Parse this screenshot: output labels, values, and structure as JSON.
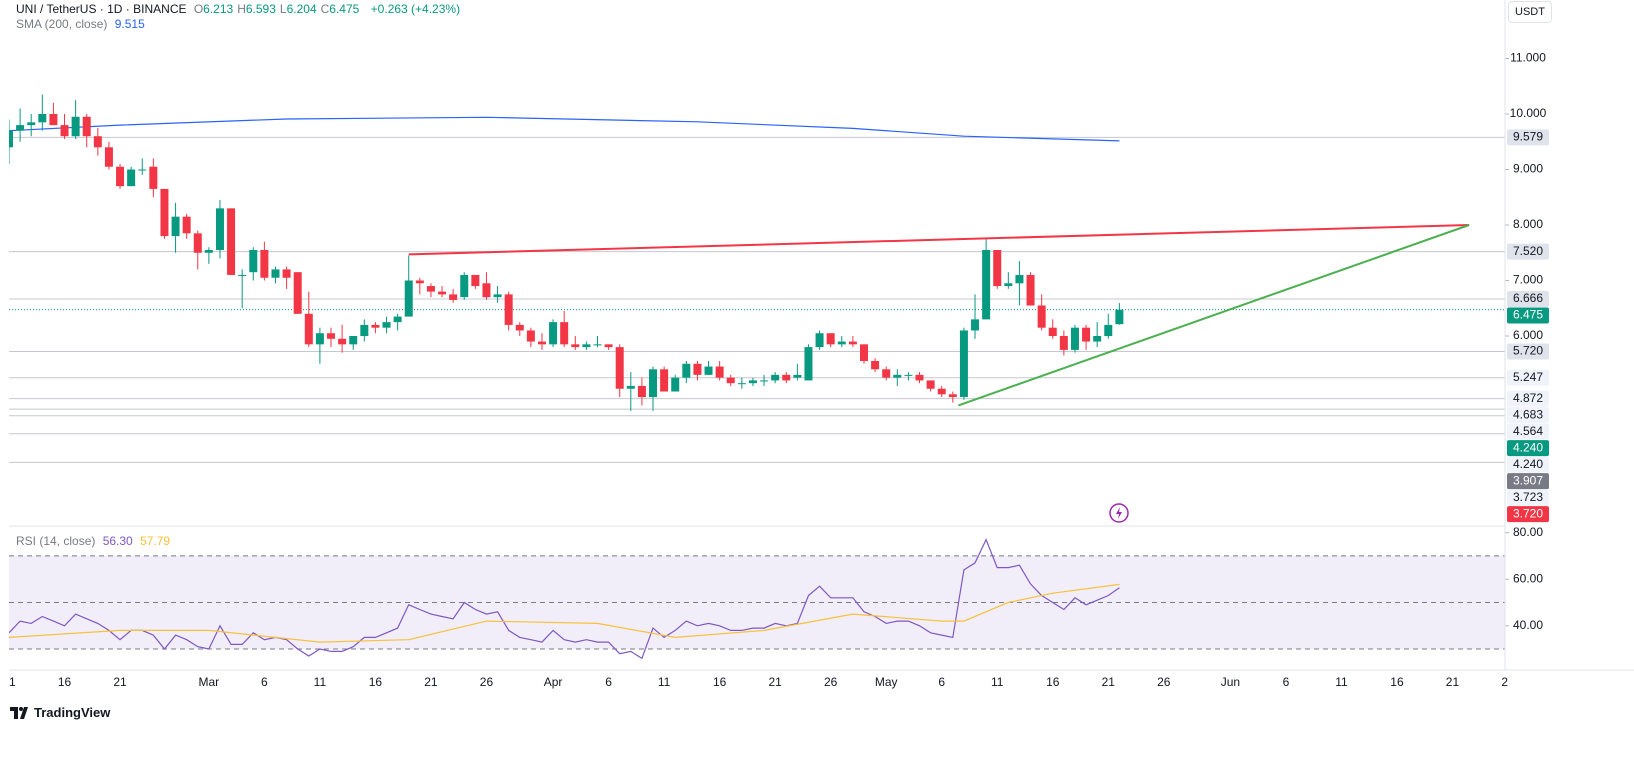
{
  "chart_data": [
    {
      "type": "candlestick",
      "legend": {
        "symbol": "UNI / TetherUS · 1D · BINANCE",
        "ohlc": [
          {
            "key": "O",
            "value": "6.213"
          },
          {
            "key": "H",
            "value": "6.593"
          },
          {
            "key": "L",
            "value": "6.204"
          },
          {
            "key": "C",
            "value": "6.475"
          }
        ],
        "change": "+0.263 (+4.23%)",
        "sma_label": "SMA (200, close)",
        "sma_value": "9.515"
      },
      "currency": "USDT",
      "up_color": "#089981",
      "down_color": "#f23645",
      "x": [
        -18,
        -17,
        -16,
        -15,
        -14,
        -13,
        -12,
        -11,
        -10,
        -9,
        -8,
        -7,
        -6,
        -5,
        -4,
        -3,
        -2,
        -1,
        0,
        1,
        2,
        3,
        4,
        5,
        6,
        7,
        8,
        9,
        10,
        11,
        12,
        13,
        14,
        15,
        16,
        17,
        18,
        19,
        20,
        21,
        22,
        23,
        24,
        25,
        26,
        27,
        28,
        29,
        30,
        31,
        32,
        33,
        34,
        35,
        36,
        37,
        38,
        39,
        40,
        41,
        42,
        43,
        44,
        45,
        46,
        47,
        48,
        49,
        50,
        51,
        52,
        53,
        54,
        55,
        56,
        57,
        58,
        59,
        60,
        61,
        62,
        63,
        64,
        65,
        66,
        67,
        68,
        69,
        70,
        71,
        72,
        73,
        74,
        75,
        76,
        77,
        78,
        79,
        80,
        81,
        82
      ],
      "open": [
        9.4,
        9.7,
        9.8,
        9.85,
        10.0,
        9.8,
        9.6,
        9.95,
        9.6,
        9.4,
        9.05,
        8.7,
        9.0,
        9.05,
        8.65,
        7.8,
        8.15,
        7.85,
        7.5,
        7.55,
        8.3,
        7.1,
        7.15,
        7.55,
        7.05,
        7.2,
        7.15,
        6.4,
        5.85,
        6.05,
        5.95,
        5.85,
        6.0,
        6.2,
        6.15,
        6.25,
        6.35,
        7.0,
        6.9,
        6.8,
        6.75,
        6.7,
        7.1,
        6.95,
        6.7,
        6.75,
        6.2,
        6.1,
        5.9,
        5.85,
        6.25,
        5.85,
        5.8,
        5.85,
        5.85,
        5.8,
        5.05,
        5.1,
        4.9,
        5.4,
        5.0,
        5.25,
        5.5,
        5.3,
        5.45,
        5.25,
        5.15,
        5.15,
        5.2,
        5.2,
        5.3,
        5.25,
        5.2,
        5.8,
        6.05,
        5.85,
        5.9,
        5.85,
        5.55,
        5.4,
        5.25,
        5.3,
        5.3,
        5.2,
        5.05,
        4.95,
        4.9,
        6.1,
        6.3,
        7.55,
        6.9,
        6.95,
        7.1,
        6.55,
        6.15,
        6.0,
        5.75,
        6.15,
        5.9,
        6.0,
        6.213
      ],
      "high": [
        9.9,
        10.1,
        10.0,
        10.35,
        10.2,
        10.0,
        10.25,
        10.0,
        9.75,
        9.5,
        9.1,
        9.05,
        9.2,
        9.2,
        8.65,
        8.4,
        8.2,
        7.9,
        7.6,
        8.45,
        8.3,
        7.2,
        7.6,
        7.7,
        7.25,
        7.25,
        7.15,
        6.8,
        6.15,
        6.15,
        6.2,
        6.0,
        6.3,
        6.25,
        6.35,
        6.4,
        7.45,
        7.05,
        6.95,
        6.9,
        6.85,
        7.15,
        7.1,
        7.15,
        6.9,
        6.8,
        6.25,
        6.15,
        6.05,
        6.3,
        6.45,
        6.0,
        5.9,
        6.0,
        5.85,
        5.85,
        5.35,
        5.25,
        5.45,
        5.45,
        5.3,
        5.55,
        5.55,
        5.55,
        5.55,
        5.3,
        5.25,
        5.25,
        5.3,
        5.35,
        5.35,
        5.5,
        5.85,
        6.1,
        6.05,
        6.0,
        6.0,
        5.85,
        5.6,
        5.45,
        5.4,
        5.35,
        5.35,
        5.2,
        5.1,
        5.0,
        6.15,
        6.75,
        7.75,
        7.55,
        7.15,
        7.35,
        7.15,
        6.75,
        6.3,
        6.1,
        6.2,
        6.2,
        6.25,
        6.4,
        6.593
      ],
      "low": [
        9.1,
        9.5,
        9.6,
        9.7,
        9.8,
        9.55,
        9.55,
        9.4,
        9.25,
        9.0,
        8.65,
        8.7,
        8.9,
        8.5,
        7.75,
        7.5,
        7.75,
        7.2,
        7.3,
        7.4,
        7.1,
        6.5,
        7.0,
        7.0,
        6.95,
        6.85,
        6.4,
        5.8,
        5.5,
        5.8,
        5.7,
        5.75,
        5.9,
        6.05,
        6.05,
        6.1,
        6.35,
        6.75,
        6.7,
        6.7,
        6.6,
        6.65,
        6.85,
        6.65,
        6.6,
        6.1,
        6.0,
        5.8,
        5.75,
        5.8,
        5.8,
        5.75,
        5.75,
        5.8,
        5.75,
        4.9,
        4.65,
        4.75,
        4.65,
        5.0,
        5.0,
        5.15,
        5.2,
        5.3,
        5.2,
        5.1,
        5.05,
        5.1,
        5.1,
        5.15,
        5.15,
        5.2,
        5.2,
        5.75,
        5.8,
        5.8,
        5.8,
        5.5,
        5.35,
        5.2,
        5.1,
        5.2,
        5.15,
        5.0,
        4.9,
        4.8,
        4.85,
        5.95,
        6.3,
        6.85,
        6.85,
        6.55,
        6.55,
        6.1,
        5.95,
        5.65,
        5.7,
        5.75,
        5.8,
        5.95,
        6.204
      ],
      "close": [
        9.7,
        9.8,
        9.85,
        10.0,
        9.8,
        9.6,
        9.95,
        9.6,
        9.4,
        9.05,
        8.7,
        9.0,
        9.0,
        8.65,
        7.8,
        8.15,
        7.85,
        7.5,
        7.55,
        8.3,
        7.1,
        7.1,
        7.55,
        7.05,
        7.2,
        7.05,
        6.4,
        5.85,
        6.05,
        5.95,
        5.85,
        6.0,
        6.2,
        6.15,
        6.25,
        6.35,
        7.0,
        6.95,
        6.8,
        6.75,
        6.65,
        7.1,
        6.9,
        6.7,
        6.75,
        6.2,
        6.1,
        5.9,
        5.85,
        6.25,
        5.85,
        5.8,
        5.85,
        5.85,
        5.8,
        5.05,
        5.1,
        4.9,
        5.4,
        5.0,
        5.25,
        5.5,
        5.3,
        5.45,
        5.25,
        5.15,
        5.15,
        5.2,
        5.2,
        5.3,
        5.2,
        5.3,
        5.8,
        6.05,
        5.85,
        5.9,
        5.85,
        5.55,
        5.4,
        5.25,
        5.3,
        5.3,
        5.2,
        5.05,
        4.95,
        4.9,
        6.1,
        6.3,
        7.55,
        6.9,
        6.95,
        7.1,
        6.55,
        6.15,
        6.0,
        5.75,
        6.15,
        5.9,
        6.0,
        6.2,
        6.475
      ],
      "xlim": [
        -18,
        117
      ],
      "xticks": [
        {
          "value": -17.7,
          "label": "1"
        },
        {
          "value": -13,
          "label": "16"
        },
        {
          "value": -8,
          "label": "21"
        },
        {
          "value": 0,
          "label": "Mar"
        },
        {
          "value": 5,
          "label": "6"
        },
        {
          "value": 10,
          "label": "11"
        },
        {
          "value": 15,
          "label": "16"
        },
        {
          "value": 20,
          "label": "21"
        },
        {
          "value": 25,
          "label": "26"
        },
        {
          "value": 31,
          "label": "Apr"
        },
        {
          "value": 36,
          "label": "6"
        },
        {
          "value": 41,
          "label": "11"
        },
        {
          "value": 46,
          "label": "16"
        },
        {
          "value": 51,
          "label": "21"
        },
        {
          "value": 56,
          "label": "26"
        },
        {
          "value": 61,
          "label": "May"
        },
        {
          "value": 66,
          "label": "6"
        },
        {
          "value": 71,
          "label": "11"
        },
        {
          "value": 76,
          "label": "16"
        },
        {
          "value": 81,
          "label": "21"
        },
        {
          "value": 86,
          "label": "26"
        },
        {
          "value": 92,
          "label": "Jun"
        },
        {
          "value": 97,
          "label": "6"
        },
        {
          "value": 102,
          "label": "11"
        },
        {
          "value": 107,
          "label": "16"
        },
        {
          "value": 112,
          "label": "21"
        },
        {
          "value": 116.7,
          "label": "2"
        }
      ],
      "ylim": [
        2.595,
        12.054
      ],
      "yticks": [
        {
          "value": 11,
          "label": "11.000"
        },
        {
          "value": 10,
          "label": "10.000"
        },
        {
          "value": 9,
          "label": "9.000"
        },
        {
          "value": 8,
          "label": "8.000"
        },
        {
          "value": 7,
          "label": "7.000"
        },
        {
          "value": 6,
          "label": "6.000"
        }
      ],
      "sma": {
        "color": "#2962ff",
        "x": [
          -18,
          -8,
          7,
          25,
          44,
          58,
          68,
          82
        ],
        "values": [
          9.7,
          9.8,
          9.91,
          9.94,
          9.86,
          9.74,
          9.6,
          9.515
        ]
      },
      "trendlines": [
        {
          "color": "#f23645",
          "x": [
            18,
            113.5
          ],
          "values": [
            7.47,
            8.0
          ]
        },
        {
          "color": "#4caf50",
          "x": [
            67.5,
            113.5
          ],
          "values": [
            4.75,
            8.0
          ]
        }
      ],
      "levels": [
        {
          "value": 9.579,
          "label": "9.579",
          "bg": "#e0e3eb",
          "fg": "#131722",
          "line": "solid"
        },
        {
          "value": 7.52,
          "label": "7.520",
          "bg": "#e0e3eb",
          "fg": "#131722",
          "line": "solid"
        },
        {
          "value": 6.666,
          "label": "6.666",
          "bg": "#e0e3eb",
          "fg": "#131722",
          "line": "solid"
        },
        {
          "value": 6.475,
          "label": "6.475",
          "bg": "#089981",
          "fg": "#ffffff",
          "line": "dotted"
        },
        {
          "value": 5.72,
          "label": "5.720",
          "bg": "#e0e3eb",
          "fg": "#131722",
          "line": "solid"
        },
        {
          "value": 5.247,
          "label": "5.247",
          "bg": "#f0f3fa",
          "fg": "#131722",
          "line": "solid"
        },
        {
          "value": 4.872,
          "label": "4.872",
          "bg": "#f0f3fa",
          "fg": "#131722",
          "line": "solid"
        },
        {
          "value": 4.683,
          "label": "4.683",
          "bg": "#f0f3fa",
          "fg": "#131722",
          "line": "solid"
        },
        {
          "value": 4.564,
          "label": "4.564",
          "bg": "#f0f3fa",
          "fg": "#131722",
          "line": "solid"
        },
        {
          "value": 4.24,
          "label": "4.240",
          "bg": "#089981",
          "fg": "#ffffff"
        },
        {
          "value": 4.24,
          "label": "4.240",
          "bg": "#f0f3fa",
          "fg": "#131722",
          "line": "solid"
        },
        {
          "value": 3.907,
          "label": "3.907",
          "bg": "#787b86",
          "fg": "#ffffff"
        },
        {
          "value": 3.723,
          "label": "3.723",
          "bg": "#f0f3fa",
          "fg": "#131722",
          "line": "solid"
        },
        {
          "value": 3.72,
          "label": "3.720",
          "bg": "#f23645",
          "fg": "#ffffff"
        }
      ]
    },
    {
      "type": "line",
      "title": "RSI (14, close)",
      "legend_values": [
        "56.30",
        "57.79"
      ],
      "ylim": [
        21,
        82
      ],
      "yticks": [
        {
          "value": 80,
          "label": "80.00"
        },
        {
          "value": 60,
          "label": "60.00"
        },
        {
          "value": 40,
          "label": "40.00"
        }
      ],
      "band": [
        30,
        70
      ],
      "midline": 50,
      "band_color": "#7e57c2",
      "series": [
        {
          "color": "#7e57c2",
          "x": [
            -18,
            -17,
            -16,
            -15,
            -14,
            -13,
            -12,
            -11,
            -10,
            -9,
            -8,
            -7,
            -6,
            -5,
            -4,
            -3,
            -2,
            -1,
            0,
            1,
            2,
            3,
            4,
            5,
            6,
            7,
            8,
            9,
            10,
            11,
            12,
            13,
            14,
            15,
            16,
            17,
            18,
            19,
            20,
            21,
            22,
            23,
            24,
            25,
            26,
            27,
            28,
            29,
            30,
            31,
            32,
            33,
            34,
            35,
            36,
            37,
            38,
            39,
            40,
            41,
            42,
            43,
            44,
            45,
            46,
            47,
            48,
            49,
            50,
            51,
            52,
            53,
            54,
            55,
            56,
            57,
            58,
            59,
            60,
            61,
            62,
            63,
            64,
            65,
            66,
            67,
            68,
            69,
            70,
            71,
            72,
            73,
            74,
            75,
            76,
            77,
            78,
            79,
            80,
            81,
            82
          ],
          "values": [
            37,
            42,
            41,
            44,
            42,
            40,
            45,
            43,
            41,
            38,
            34,
            38,
            38,
            36,
            30,
            36,
            34,
            31,
            30,
            40,
            32,
            32,
            37,
            34,
            35,
            34,
            30,
            27,
            30,
            29,
            29,
            31,
            35,
            35,
            37,
            39,
            49,
            47,
            45,
            44,
            43,
            50,
            47,
            45,
            46,
            38,
            35,
            34,
            33,
            38,
            34,
            33,
            34,
            33,
            33,
            28,
            29,
            26,
            39,
            35,
            38,
            42,
            40,
            41,
            40,
            38,
            38,
            39,
            39,
            41,
            40,
            41,
            53,
            57,
            52,
            52,
            52,
            46,
            44,
            41,
            42,
            42,
            40,
            37,
            36,
            35,
            64,
            67,
            77,
            65,
            65,
            66,
            58,
            53,
            50,
            47,
            52,
            49,
            51,
            53,
            56.3
          ]
        },
        {
          "color": "#f7c13b",
          "x": [
            -18,
            -8,
            0,
            10,
            18,
            25,
            35,
            42,
            50,
            58,
            66,
            68,
            72,
            76,
            82
          ],
          "values": [
            35,
            38,
            38,
            33,
            34,
            42,
            41,
            35,
            38,
            45,
            42,
            42,
            50,
            54,
            57.79
          ]
        }
      ]
    }
  ],
  "branding": "TradingView"
}
